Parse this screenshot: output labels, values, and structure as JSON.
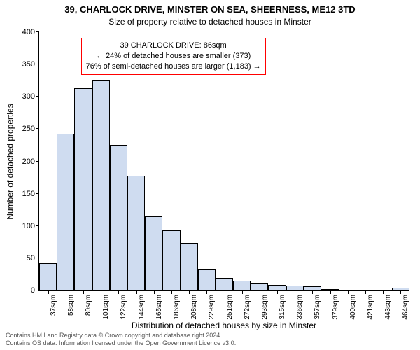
{
  "titles": {
    "line1": "39, CHARLOCK DRIVE, MINSTER ON SEA, SHEERNESS, ME12 3TD",
    "line2": "Size of property relative to detached houses in Minster"
  },
  "axes": {
    "ylabel": "Number of detached properties",
    "xlabel": "Distribution of detached houses by size in Minster",
    "ylim": [
      0,
      400
    ],
    "ytick_step": 50,
    "yticks": [
      0,
      50,
      100,
      150,
      200,
      250,
      300,
      350,
      400
    ],
    "label_fontsize": 12,
    "tick_fontsize": 11
  },
  "chart": {
    "type": "histogram",
    "bar_color": "#cfdcf0",
    "bar_border_color": "#000000",
    "background_color": "#ffffff",
    "categories": [
      "37sqm",
      "58sqm",
      "80sqm",
      "101sqm",
      "122sqm",
      "144sqm",
      "165sqm",
      "186sqm",
      "208sqm",
      "229sqm",
      "251sqm",
      "272sqm",
      "293sqm",
      "315sqm",
      "336sqm",
      "357sqm",
      "379sqm",
      "400sqm",
      "421sqm",
      "443sqm",
      "464sqm"
    ],
    "values": [
      42,
      243,
      313,
      325,
      225,
      178,
      115,
      93,
      74,
      32,
      20,
      15,
      11,
      9,
      8,
      6,
      2,
      0,
      0,
      0,
      4
    ]
  },
  "reference_line": {
    "color": "#ff0000",
    "position_between_categories": [
      2,
      3
    ],
    "fraction": 0.28
  },
  "callout": {
    "border_color": "#ff0000",
    "text_color": "#000000",
    "background_color": "#ffffff",
    "line1": "39 CHARLOCK DRIVE: 86sqm",
    "line2": "← 24% of detached houses are smaller (373)",
    "line3": "76% of semi-detached houses are larger (1,183) →"
  },
  "footer": {
    "line1": "Contains HM Land Registry data © Crown copyright and database right 2024.",
    "line2": "Contains OS data. Information licensed under the Open Government Licence v3.0."
  }
}
